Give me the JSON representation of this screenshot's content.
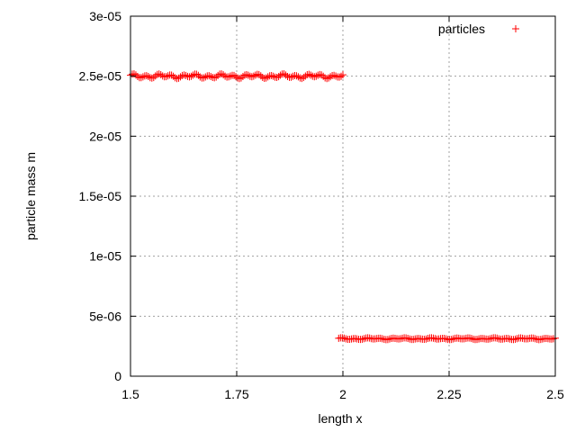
{
  "chart_data": {
    "type": "scatter",
    "title": "",
    "xlabel": "length x",
    "ylabel": "particle mass m",
    "xlim": [
      1.5,
      2.5
    ],
    "ylim": [
      0,
      3e-05
    ],
    "x_ticks": [
      1.5,
      1.75,
      2,
      2.25,
      2.5
    ],
    "x_tick_labels": [
      "1.5",
      "1.75",
      "2",
      "2.25",
      "2.5"
    ],
    "y_ticks": [
      0,
      5e-06,
      1e-05,
      1.5e-05,
      2e-05,
      2.5e-05,
      3e-05
    ],
    "y_tick_labels": [
      "0",
      "5e-06",
      "1e-05",
      "1.5e-05",
      "2e-05",
      "2.5e-05",
      "3e-05"
    ],
    "grid": true,
    "legend_position": "top-right",
    "series": [
      {
        "name": "particles",
        "color": "#ff0000",
        "marker": "plus",
        "segments": [
          {
            "x_start": 1.5,
            "x_end": 2.0,
            "count": 120,
            "y": 2.5e-05,
            "y_variation": 2e-07
          },
          {
            "x_start": 1.99,
            "x_end": 2.5,
            "count": 120,
            "y": 3.125e-06,
            "y_variation": 8e-08
          }
        ]
      }
    ]
  }
}
